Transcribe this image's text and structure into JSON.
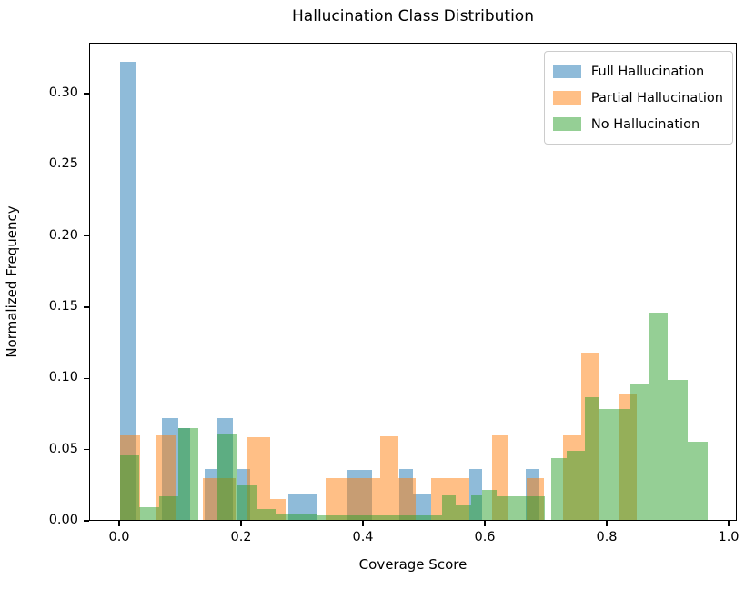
{
  "figure": {
    "title": "Hallucination Class Distribution",
    "xlabel": "Coverage Score",
    "ylabel": "Normalized Frequency"
  },
  "chart_data": {
    "type": "bar",
    "subtype": "overlaid-histograms",
    "title": "Hallucination Class Distribution",
    "xlabel": "Coverage Score",
    "ylabel": "Normalized Frequency",
    "xlim": [
      -0.0493,
      1.0134
    ],
    "ylim": [
      0,
      0.3357
    ],
    "grid": false,
    "legend_position": "upper-right",
    "x_ticks": [
      {
        "v": 0.0,
        "label": "0.0"
      },
      {
        "v": 0.2,
        "label": "0.2"
      },
      {
        "v": 0.4,
        "label": "0.4"
      },
      {
        "v": 0.6,
        "label": "0.6"
      },
      {
        "v": 0.8,
        "label": "0.8"
      },
      {
        "v": 1.0,
        "label": "1.0"
      }
    ],
    "y_ticks": [
      {
        "v": 0.0,
        "label": "0.00"
      },
      {
        "v": 0.05,
        "label": "0.05"
      },
      {
        "v": 0.1,
        "label": "0.10"
      },
      {
        "v": 0.15,
        "label": "0.15"
      },
      {
        "v": 0.2,
        "label": "0.20"
      },
      {
        "v": 0.25,
        "label": "0.25"
      },
      {
        "v": 0.3,
        "label": "0.30"
      }
    ],
    "series": [
      {
        "name": "Full Hallucination",
        "color": "#1f77b4",
        "fill": "rgba(31,119,180,0.5)",
        "bars": [
          [
            0.0,
            0.026,
            0.3215
          ],
          [
            0.069,
            0.0955,
            0.0717
          ],
          [
            0.0955,
            0.115,
            0.0647
          ],
          [
            0.138,
            0.16,
            0.0359
          ],
          [
            0.16,
            0.185,
            0.0717
          ],
          [
            0.1925,
            0.2135,
            0.0359
          ],
          [
            0.276,
            0.322,
            0.0179
          ],
          [
            0.372,
            0.414,
            0.0349
          ],
          [
            0.458,
            0.481,
            0.0359
          ],
          [
            0.481,
            0.511,
            0.0179
          ],
          [
            0.573,
            0.5945,
            0.0359
          ],
          [
            0.665,
            0.688,
            0.0359
          ]
        ]
      },
      {
        "name": "Partial Hallucination",
        "color": "#ff7f0e",
        "fill": "rgba(255,127,14,0.5)",
        "bars": [
          [
            0.0,
            0.0333,
            0.0592
          ],
          [
            0.0597,
            0.093,
            0.0592
          ],
          [
            0.1363,
            0.1896,
            0.0292
          ],
          [
            0.2075,
            0.2463,
            0.058
          ],
          [
            0.2463,
            0.2716,
            0.0147
          ],
          [
            0.3369,
            0.4269,
            0.0296
          ],
          [
            0.4269,
            0.4552,
            0.0587
          ],
          [
            0.4552,
            0.4851,
            0.0296
          ],
          [
            0.511,
            0.5731,
            0.0296
          ],
          [
            0.6104,
            0.6354,
            0.0592
          ],
          [
            0.6676,
            0.695,
            0.0296
          ],
          [
            0.7264,
            0.7572,
            0.0594
          ],
          [
            0.7572,
            0.7871,
            0.1173
          ],
          [
            0.8184,
            0.8482,
            0.0879
          ]
        ]
      },
      {
        "name": "No Hallucination",
        "color": "#2ca02c",
        "fill": "rgba(44,160,44,0.5)",
        "bars": [
          [
            0.0,
            0.0318,
            0.0455
          ],
          [
            0.0318,
            0.0646,
            0.0087
          ],
          [
            0.0646,
            0.0955,
            0.0168
          ],
          [
            0.0955,
            0.128,
            0.0647
          ],
          [
            0.16,
            0.1925,
            0.0604
          ],
          [
            0.1925,
            0.225,
            0.0242
          ],
          [
            0.225,
            0.2547,
            0.008
          ],
          [
            0.2547,
            0.322,
            0.004
          ],
          [
            0.322,
            0.528,
            0.003
          ],
          [
            0.528,
            0.5505,
            0.017
          ],
          [
            0.5505,
            0.5765,
            0.0104
          ],
          [
            0.5765,
            0.5945,
            0.017
          ],
          [
            0.5945,
            0.618,
            0.021
          ],
          [
            0.618,
            0.6975,
            0.0168
          ],
          [
            0.7075,
            0.7324,
            0.0434
          ],
          [
            0.7324,
            0.7622,
            0.0487
          ],
          [
            0.7622,
            0.7871,
            0.086
          ],
          [
            0.7871,
            0.8369,
            0.078
          ],
          [
            0.8369,
            0.8667,
            0.096
          ],
          [
            0.8667,
            0.899,
            0.1455
          ],
          [
            0.899,
            0.9313,
            0.098
          ],
          [
            0.9313,
            0.9637,
            0.055
          ]
        ]
      }
    ]
  }
}
